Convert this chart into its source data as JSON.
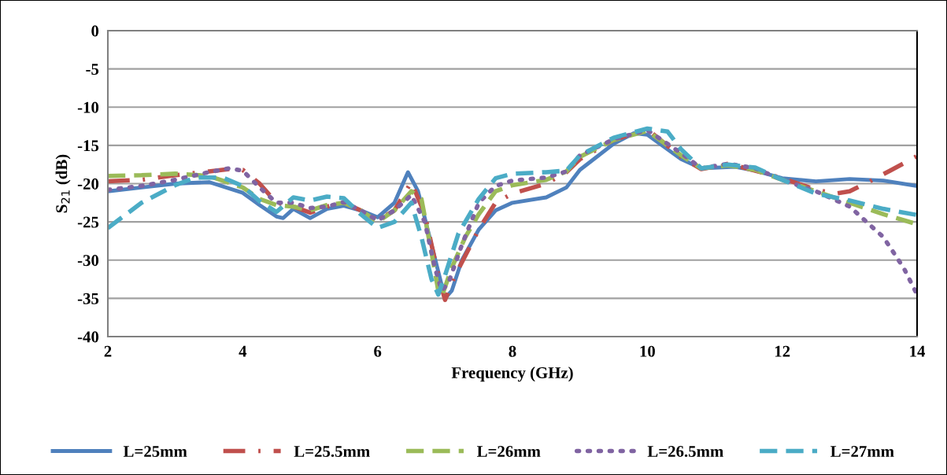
{
  "chart_data": {
    "type": "line",
    "xlabel": "Frequency (GHz)",
    "ylabel": "S$_{21}$ (dB)",
    "xlim": [
      2,
      14
    ],
    "xticks": [
      2,
      4,
      6,
      8,
      10,
      12,
      14
    ],
    "ylim": [
      -40,
      0
    ],
    "yticks": [
      -40,
      -35,
      -30,
      -25,
      -20,
      -15,
      -10,
      -5,
      0
    ],
    "grid": "y",
    "legend": "bottom",
    "marker": "none",
    "series": [
      {
        "name": "L=25mm",
        "color": "#4f81bd",
        "line_style": "solid",
        "x": [
          2,
          2.5,
          3,
          3.5,
          4,
          4.25,
          4.5,
          4.6,
          4.75,
          5,
          5.25,
          5.5,
          5.75,
          6,
          6.25,
          6.45,
          6.6,
          6.8,
          7,
          7.1,
          7.25,
          7.5,
          7.75,
          8,
          8.5,
          8.8,
          9,
          9.5,
          9.8,
          10,
          10.5,
          10.8,
          11.3,
          11.6,
          12,
          12.5,
          13,
          13.5,
          14
        ],
        "values": [
          -21,
          -20.5,
          -20,
          -19.8,
          -21.2,
          -22.8,
          -24.3,
          -24.5,
          -23.3,
          -24.5,
          -23.3,
          -22.9,
          -23.5,
          -24.4,
          -22.5,
          -18.5,
          -21,
          -28,
          -35,
          -34,
          -30,
          -26,
          -23.5,
          -22.5,
          -21.8,
          -20.5,
          -18.2,
          -14.8,
          -13.4,
          -13.6,
          -16.8,
          -18,
          -17.8,
          -18.3,
          -19.3,
          -19.7,
          -19.4,
          -19.6,
          -20.3
        ]
      },
      {
        "name": "L=25.5mm",
        "color": "#c0504d",
        "line_style": "dashdot",
        "x": [
          2,
          2.5,
          3,
          3.5,
          3.8,
          4,
          4.25,
          4.5,
          4.75,
          5,
          5.25,
          5.5,
          5.75,
          6,
          6.25,
          6.5,
          6.7,
          6.9,
          7,
          7.15,
          7.5,
          7.75,
          8,
          8.5,
          8.8,
          9,
          9.5,
          10,
          10.5,
          10.8,
          11.2,
          11.6,
          12,
          12.5,
          12.8,
          13,
          13.3,
          13.6,
          14
        ],
        "values": [
          -19.7,
          -19.5,
          -18.9,
          -18.4,
          -18.1,
          -18.2,
          -20,
          -22.5,
          -23,
          -23.8,
          -23,
          -22.5,
          -23.5,
          -24.8,
          -23.5,
          -19.8,
          -24,
          -32,
          -35.2,
          -32,
          -26,
          -22.5,
          -21.3,
          -20,
          -18.5,
          -16.8,
          -14.3,
          -12.9,
          -16.5,
          -18.1,
          -17.4,
          -18.3,
          -19.3,
          -20.8,
          -21.3,
          -21,
          -19.7,
          -18.3,
          -16.4
        ]
      },
      {
        "name": "L=26mm",
        "color": "#9bbb59",
        "line_style": "dashed",
        "x": [
          2,
          2.5,
          3,
          3.5,
          4,
          4.25,
          4.5,
          4.75,
          5,
          5.25,
          5.5,
          5.75,
          6,
          6.25,
          6.5,
          6.65,
          6.8,
          6.9,
          6.95,
          7.1,
          7.3,
          7.5,
          7.75,
          8,
          8.5,
          8.8,
          9,
          9.5,
          10,
          10.5,
          10.8,
          11.2,
          11.6,
          12,
          12.5,
          13,
          13.5,
          14
        ],
        "values": [
          -19,
          -18.9,
          -18.7,
          -19,
          -20.5,
          -22,
          -22.8,
          -23,
          -23.5,
          -22.8,
          -22.5,
          -23.5,
          -25,
          -23.5,
          -21,
          -22,
          -29,
          -34,
          -34.8,
          -31,
          -27,
          -24,
          -21,
          -20.2,
          -19.5,
          -18.4,
          -16.5,
          -14.3,
          -13.1,
          -16.3,
          -18,
          -17.6,
          -18.2,
          -19.5,
          -21,
          -22.5,
          -24,
          -25.3
        ]
      },
      {
        "name": "L=26.5mm",
        "color": "#8064a2",
        "line_style": "dotted",
        "x": [
          2,
          2.5,
          3,
          3.5,
          3.8,
          4,
          4.25,
          4.5,
          4.75,
          5,
          5.25,
          5.5,
          5.75,
          6,
          6.25,
          6.5,
          6.7,
          6.85,
          6.95,
          7.05,
          7.25,
          7.5,
          7.75,
          8,
          8.5,
          8.8,
          9,
          9.5,
          10,
          10.5,
          10.8,
          11.2,
          11.6,
          12,
          12.5,
          13,
          13.5,
          13.8,
          14
        ],
        "values": [
          -20.8,
          -20.3,
          -19.5,
          -18.5,
          -18,
          -18.3,
          -20.5,
          -22.5,
          -22.5,
          -23.2,
          -23,
          -22.4,
          -23.5,
          -24.8,
          -23.5,
          -21.5,
          -25,
          -31,
          -34,
          -33,
          -28,
          -22.5,
          -20.3,
          -19.6,
          -19.2,
          -18.4,
          -16.3,
          -14.2,
          -13,
          -16,
          -18,
          -17.4,
          -18,
          -19.5,
          -21,
          -23,
          -27,
          -31,
          -34.5
        ]
      },
      {
        "name": "L=27mm",
        "color": "#4bacc6",
        "line_style": "dashed",
        "x": [
          2,
          2.5,
          3,
          3.3,
          3.7,
          4,
          4.25,
          4.5,
          4.75,
          5,
          5.25,
          5.5,
          5.75,
          6,
          6.25,
          6.5,
          6.65,
          6.8,
          6.9,
          7,
          7.2,
          7.5,
          7.75,
          8,
          8.5,
          8.8,
          9,
          9.5,
          10,
          10.3,
          10.5,
          10.8,
          11.2,
          11.6,
          12,
          12.5,
          13,
          13.5,
          14
        ],
        "values": [
          -25.8,
          -22.5,
          -20.2,
          -19.2,
          -19.2,
          -20.3,
          -22.3,
          -23.7,
          -21.8,
          -22.2,
          -21.7,
          -21.9,
          -24,
          -25.8,
          -25,
          -22.5,
          -27,
          -32.5,
          -34.5,
          -32,
          -26.5,
          -22,
          -19.3,
          -18.7,
          -18.5,
          -18.3,
          -16.3,
          -14,
          -12.8,
          -13.2,
          -15.5,
          -18,
          -17.5,
          -17.9,
          -19.5,
          -21.3,
          -22.2,
          -23.3,
          -24.1
        ]
      }
    ]
  }
}
